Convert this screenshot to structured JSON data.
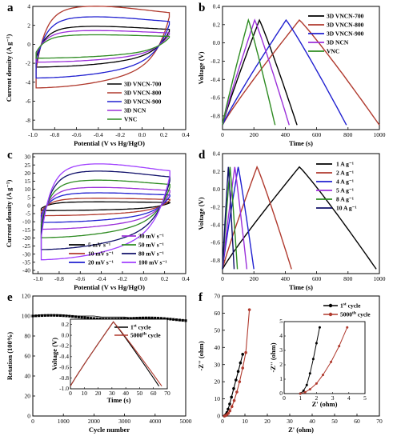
{
  "figure": {
    "panel_letters": [
      "a",
      "b",
      "c",
      "d",
      "e",
      "f"
    ]
  },
  "chart_data": [
    {
      "panel": "a",
      "type": "line",
      "xlabel": "Potential (V vs Hg/HgO)",
      "ylabel": "Current density (A g⁻¹)",
      "xlim": [
        -1.0,
        0.4
      ],
      "ylim": [
        -9,
        4
      ],
      "xticks": [
        "-1.0",
        "-0.8",
        "-0.6",
        "-0.4",
        "-0.2",
        "0.0",
        "0.2",
        "0.4"
      ],
      "yticks": [
        "-8",
        "-6",
        "-4",
        "-2",
        "0",
        "2",
        "4"
      ],
      "legend_position": "bottom-right",
      "series": [
        {
          "name": "3D VNCN-700",
          "color": "#000000",
          "upper_mean": 1.7,
          "lower_mean": -2.3
        },
        {
          "name": "3D VNCN-800",
          "color": "#b03a2e",
          "upper_mean": 3.6,
          "lower_mean": -4.4
        },
        {
          "name": "3D VNCN-900",
          "color": "#2020d0",
          "upper_mean": 2.6,
          "lower_mean": -3.4
        },
        {
          "name": "3D NCN",
          "color": "#9b30d9",
          "upper_mean": 1.3,
          "lower_mean": -1.8
        },
        {
          "name": "VNC",
          "color": "#2e8b22",
          "upper_mean": 0.9,
          "lower_mean": -1.4
        }
      ]
    },
    {
      "panel": "b",
      "type": "line",
      "xlabel": "Time (s)",
      "ylabel": "Voltage (V)",
      "xlim": [
        0,
        1000
      ],
      "ylim": [
        -0.95,
        0.4
      ],
      "xticks": [
        "0",
        "200",
        "400",
        "600",
        "800",
        "1000"
      ],
      "yticks": [
        "-0.8",
        "-0.6",
        "-0.4",
        "-0.2",
        "0.0",
        "0.2",
        "0.4"
      ],
      "legend_position": "top-right",
      "series": [
        {
          "name": "3D VNCN-700",
          "color": "#000000",
          "peak_time": 235,
          "end_time": 475
        },
        {
          "name": "3D VNCN-800",
          "color": "#b03a2e",
          "peak_time": 490,
          "end_time": 1000
        },
        {
          "name": "3D VNCN-900",
          "color": "#2020d0",
          "peak_time": 405,
          "end_time": 790
        },
        {
          "name": "3D NCN",
          "color": "#9b30d9",
          "peak_time": 205,
          "end_time": 425
        },
        {
          "name": "VNC",
          "color": "#2e8b22",
          "peak_time": 165,
          "end_time": 335
        }
      ]
    },
    {
      "panel": "c",
      "type": "line",
      "xlabel": "Potential (V vs Hg/HgO)",
      "ylabel": "Current density (A g⁻¹)",
      "xlim": [
        -1.05,
        0.4
      ],
      "ylim": [
        -42,
        32
      ],
      "xticks": [
        "-1.0",
        "-0.8",
        "-0.6",
        "-0.4",
        "-0.2",
        "0.0",
        "0.2",
        "0.4"
      ],
      "yticks": [
        "-40",
        "-35",
        "-30",
        "-25",
        "-20",
        "-15",
        "-10",
        "-5",
        "0",
        "5",
        "10",
        "15",
        "20",
        "25",
        "30"
      ],
      "legend_position": "bottom-right",
      "series": [
        {
          "name": "5 mV s⁻¹",
          "color": "#000000",
          "upper_mean": 2.0,
          "lower_mean": -3.0
        },
        {
          "name": "10 mV s⁻¹",
          "color": "#b03a2e",
          "upper_mean": 4.0,
          "lower_mean": -6.0
        },
        {
          "name": "20 mV s⁻¹",
          "color": "#2020d0",
          "upper_mean": 7.0,
          "lower_mean": -10.0
        },
        {
          "name": "30 mV s⁻¹",
          "color": "#9b30d9",
          "upper_mean": 10.0,
          "lower_mean": -14.0
        },
        {
          "name": "50 mV s⁻¹",
          "color": "#2e8b22",
          "upper_mean": 14.0,
          "lower_mean": -19.0
        },
        {
          "name": "80 mV s⁻¹",
          "color": "#10106a",
          "upper_mean": 19.0,
          "lower_mean": -26.0
        },
        {
          "name": "100 mV s⁻¹",
          "color": "#a040ff",
          "upper_mean": 23.0,
          "lower_mean": -32.0
        }
      ]
    },
    {
      "panel": "d",
      "type": "line",
      "xlabel": "Time (s)",
      "ylabel": "Voltage (V)",
      "xlim": [
        0,
        1000
      ],
      "ylim": [
        -0.95,
        0.4
      ],
      "xticks": [
        "0",
        "200",
        "400",
        "600",
        "800",
        "1000"
      ],
      "yticks": [
        "-0.8",
        "-0.6",
        "-0.4",
        "-0.2",
        "0.0",
        "0.2",
        "0.4"
      ],
      "legend_position": "top-right",
      "series": [
        {
          "name": "1 A g⁻¹",
          "color": "#000000",
          "peak_time": 490,
          "end_time": 980
        },
        {
          "name": "2 A g⁻¹",
          "color": "#b03a2e",
          "peak_time": 220,
          "end_time": 440
        },
        {
          "name": "4 A g⁻¹",
          "color": "#2020d0",
          "peak_time": 100,
          "end_time": 200
        },
        {
          "name": "5 A g⁻¹",
          "color": "#9b30d9",
          "peak_time": 78,
          "end_time": 155
        },
        {
          "name": "8 A g⁻¹",
          "color": "#2e8b22",
          "peak_time": 48,
          "end_time": 95
        },
        {
          "name": "10 A g⁻¹",
          "color": "#10106a",
          "peak_time": 37,
          "end_time": 74
        }
      ]
    },
    {
      "panel": "e",
      "type": "scatter",
      "xlabel": "Cycle number",
      "ylabel": "Retation (100%)",
      "xlim": [
        0,
        5000
      ],
      "ylim": [
        0,
        120
      ],
      "xticks": [
        "0",
        "1000",
        "2000",
        "3000",
        "4000",
        "5000"
      ],
      "yticks": [
        "0",
        "20",
        "40",
        "60",
        "80",
        "100",
        "120"
      ],
      "x": [
        0,
        250,
        500,
        750,
        1000,
        1250,
        1500,
        1750,
        2000,
        2250,
        2500,
        2750,
        3000,
        3250,
        3500,
        3750,
        4000,
        4250,
        4500,
        4750,
        5000
      ],
      "y": [
        100,
        101,
        101,
        101,
        101,
        100,
        100,
        100,
        100,
        99,
        99,
        99,
        99,
        98,
        98,
        98,
        97,
        97,
        97,
        96,
        96
      ],
      "inset": {
        "xlabel": "Time (s)",
        "ylabel": "Voltage (V)",
        "xlim": [
          0,
          70
        ],
        "ylim": [
          -1.0,
          0.3
        ],
        "xticks": [
          "0",
          "10",
          "20",
          "30",
          "40",
          "50",
          "60",
          "70"
        ],
        "yticks": [
          "-1.0",
          "-0.8",
          "-0.6",
          "-0.4",
          "-0.2",
          "0.0",
          "0.2"
        ],
        "series": [
          {
            "name": "1st cycle",
            "label_main": "1",
            "label_sup": "st",
            "label_tail": " cycle",
            "color": "#000000",
            "peak_time": 31,
            "end_time": 64
          },
          {
            "name": "5000th cycle",
            "label_main": "5000",
            "label_sup": "th",
            "label_tail": " cycle",
            "color": "#b03a2e",
            "peak_time": 31,
            "end_time": 66
          }
        ]
      }
    },
    {
      "panel": "f",
      "type": "line",
      "xlabel": "Z' (ohm)",
      "ylabel": "-Z'' (ohm)",
      "xlim": [
        0,
        70
      ],
      "ylim": [
        0,
        70
      ],
      "xticks": [
        "0",
        "10",
        "20",
        "30",
        "40",
        "50",
        "60",
        "70"
      ],
      "yticks": [
        "0",
        "10",
        "20",
        "30",
        "40",
        "50",
        "60",
        "70"
      ],
      "legend_position": "top-right",
      "series": [
        {
          "name": "1st cycle",
          "label_main": "1",
          "label_sup": "st",
          "label_tail": " cycle",
          "color": "#000000",
          "x": [
            0.8,
            1.2,
            1.6,
            2.0,
            2.5,
            3.2,
            4.0,
            5.0,
            6.0,
            7.0,
            8.0,
            9.0
          ],
          "y": [
            0,
            0.4,
            1.0,
            2.0,
            4.0,
            7.0,
            11,
            16,
            21,
            26,
            31,
            36
          ]
        },
        {
          "name": "5000th cycle",
          "label_main": "5000",
          "label_sup": "th",
          "label_tail": " cycle",
          "color": "#b03a2e",
          "x": [
            0.9,
            1.5,
            2.0,
            2.6,
            3.3,
            4.2,
            5.2,
            6.4,
            7.6,
            9.0,
            10.4,
            12.0
          ],
          "y": [
            0,
            0.3,
            0.8,
            1.6,
            3.0,
            5.5,
            9,
            14,
            20,
            28,
            37,
            62
          ]
        }
      ],
      "inset": {
        "xlabel": "Z' (ohm)",
        "ylabel": "-Z'' (ohm)",
        "xlim": [
          0,
          5
        ],
        "ylim": [
          0,
          5
        ],
        "xticks": [
          "0",
          "1",
          "2",
          "3",
          "4",
          "5"
        ],
        "yticks": [
          "0",
          "1",
          "2",
          "3",
          "4",
          "5"
        ],
        "series": [
          {
            "name": "1st cycle",
            "color": "#000000",
            "x": [
              1.0,
              1.2,
              1.4,
              1.6,
              1.8,
              2.0,
              2.2
            ],
            "y": [
              0,
              0.2,
              0.6,
              1.4,
              2.4,
              3.5,
              4.6
            ]
          },
          {
            "name": "5000th cycle",
            "color": "#b03a2e",
            "x": [
              1.0,
              1.3,
              1.6,
              2.0,
              2.4,
              2.9,
              3.4,
              3.9
            ],
            "y": [
              0,
              0.1,
              0.3,
              0.7,
              1.3,
              2.2,
              3.3,
              4.6
            ]
          }
        ]
      }
    }
  ]
}
